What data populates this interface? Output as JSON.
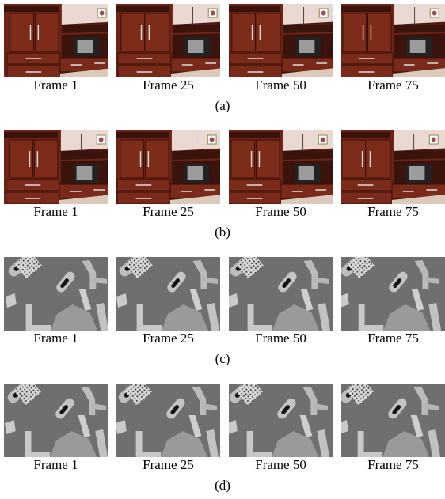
{
  "rows": [
    {
      "frames": [
        "Frame 1",
        "Frame 25",
        "Frame 50",
        "Frame 75"
      ],
      "label": "(a)"
    },
    {
      "frames": [
        "Frame 1",
        "Frame 25",
        "Frame 50",
        "Frame 75"
      ],
      "label": "(b)"
    },
    {
      "frames": [
        "Frame 1",
        "Frame 25",
        "Frame 50",
        "Frame 75"
      ],
      "label": "(c)"
    },
    {
      "frames": [
        "Frame 1",
        "Frame 25",
        "Frame 50",
        "Frame 75"
      ],
      "label": "(d)"
    }
  ]
}
